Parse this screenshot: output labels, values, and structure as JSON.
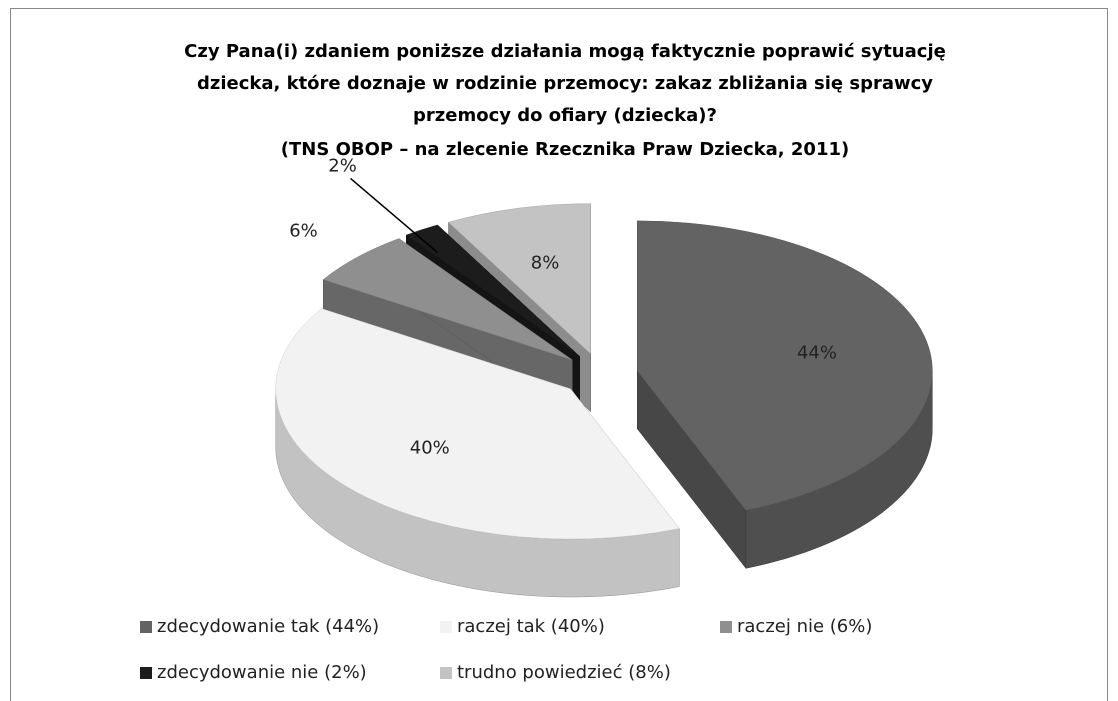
{
  "chart_data": {
    "type": "pie3d",
    "title": [
      "Czy Pana(i) zdaniem poniższe działania mogą faktycznie poprawić sytuację",
      "dziecka, które doznaje w rodzinie przemocy: zakaz zbliżania się sprawcy",
      "przemocy do ofiary (dziecka)?"
    ],
    "subtitle": "(TNS OBOP – na zlecenie Rzecznika Praw Dziecka, 2011)",
    "categories": [
      "zdecydowanie tak (44%)",
      "raczej tak (40%)",
      "raczej nie (6%)",
      "zdecydowanie nie (2%)",
      "trudno powiedzieć (8%)"
    ],
    "values": [
      44,
      40,
      6,
      2,
      8
    ],
    "value_labels": [
      "44%",
      "40%",
      "6%",
      "2%",
      "8%"
    ],
    "colors": [
      "#636363",
      "#f2f2f2",
      "#8f8f8f",
      "#1c1c1c",
      "#c3c3c3"
    ]
  }
}
